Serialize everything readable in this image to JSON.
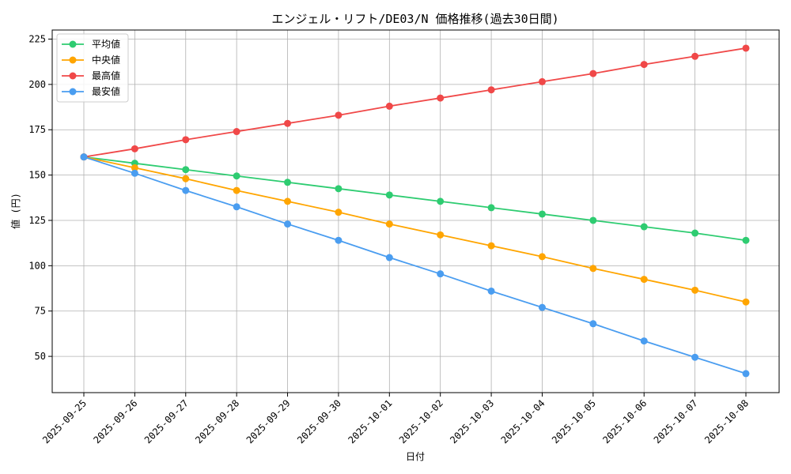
{
  "chart_data": {
    "type": "line",
    "title": "エンジェル・リフト/DE03/N 価格推移(過去30日間)",
    "xlabel": "日付",
    "ylabel": "値 (円)",
    "categories": [
      "2025-09-25",
      "2025-09-26",
      "2025-09-27",
      "2025-09-28",
      "2025-09-29",
      "2025-09-30",
      "2025-10-01",
      "2025-10-02",
      "2025-10-03",
      "2025-10-04",
      "2025-10-05",
      "2025-10-06",
      "2025-10-07",
      "2025-10-08"
    ],
    "ylim": [
      30,
      230
    ],
    "yticks": [
      50,
      75,
      100,
      125,
      150,
      175,
      200,
      225
    ],
    "grid": true,
    "legend_position": "top-left",
    "series": [
      {
        "name": "平均値",
        "color": "#2ecc71",
        "values": [
          160,
          156.5,
          153,
          149.5,
          146,
          142.5,
          139,
          135.5,
          132,
          128.5,
          125,
          121.5,
          118,
          114
        ]
      },
      {
        "name": "中央値",
        "color": "#ffa500",
        "values": [
          160,
          154,
          148,
          141.5,
          135.5,
          129.5,
          123,
          117,
          111,
          105,
          98.5,
          92.5,
          86.5,
          80
        ]
      },
      {
        "name": "最高値",
        "color": "#f04848",
        "values": [
          160,
          164.5,
          169.5,
          174,
          178.5,
          183,
          188,
          192.5,
          197,
          201.5,
          206,
          211,
          215.5,
          220
        ]
      },
      {
        "name": "最安値",
        "color": "#4a9df0",
        "values": [
          160,
          151,
          141.5,
          132.5,
          123,
          114,
          104.5,
          95.5,
          86,
          77,
          68,
          58.5,
          49.5,
          40.5
        ]
      }
    ]
  }
}
